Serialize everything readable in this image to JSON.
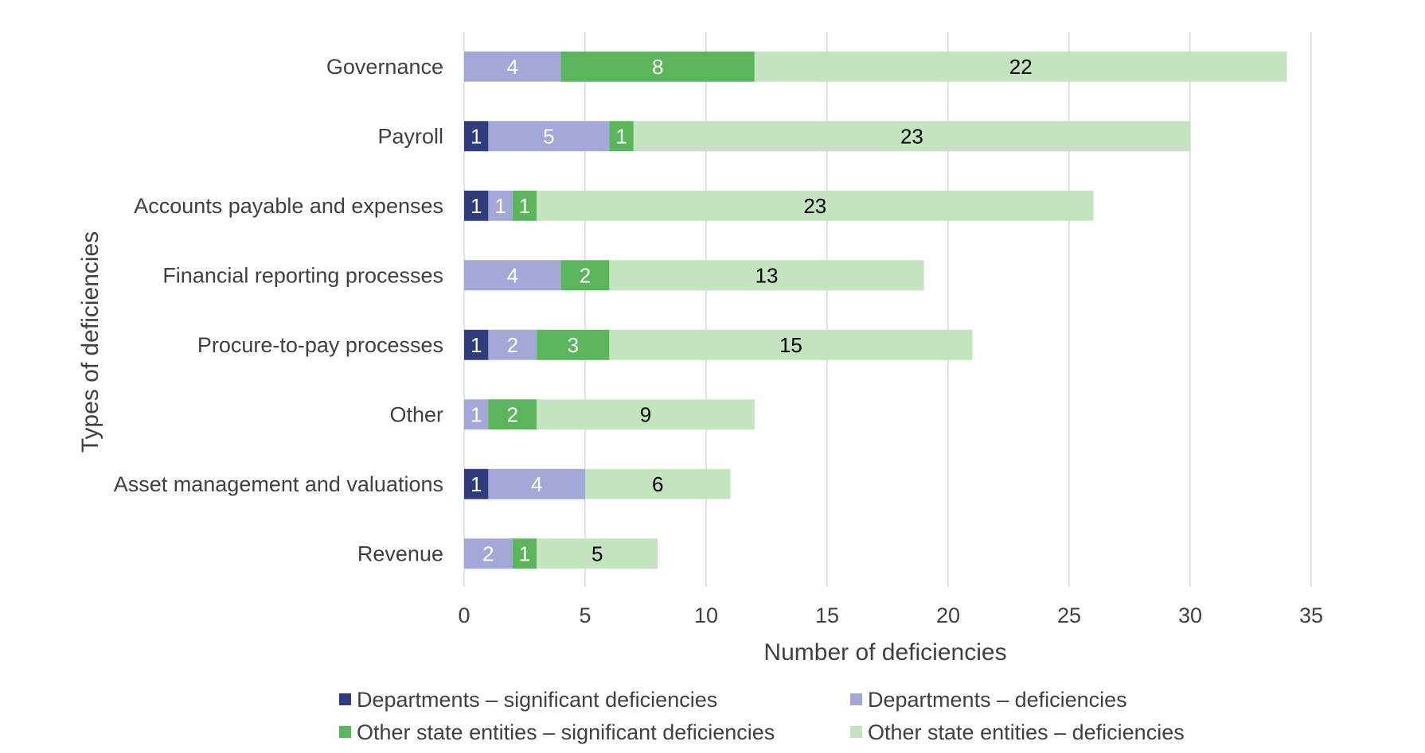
{
  "chart_data": {
    "type": "bar",
    "orientation": "horizontal",
    "stacked": true,
    "title": "",
    "xlabel": "Number of deficiencies",
    "ylabel": "Types of deficiencies",
    "xlim": [
      0,
      35
    ],
    "xticks": [
      0,
      5,
      10,
      15,
      20,
      25,
      30,
      35
    ],
    "grid": true,
    "legend_position": "bottom",
    "categories": [
      "Governance",
      "Payroll",
      "Accounts payable and expenses",
      "Financial reporting processes",
      "Procure-to-pay processes",
      "Other",
      "Asset management and valuations",
      "Revenue"
    ],
    "series": [
      {
        "name": "Departments – significant deficiencies",
        "color": "#2f3c7e",
        "label_color": "#ffffff",
        "values": [
          0,
          1,
          1,
          0,
          1,
          0,
          1,
          0
        ]
      },
      {
        "name": "Departments – deficiencies",
        "color": "#a2a8d8",
        "label_color": "#ffffff",
        "values": [
          4,
          5,
          1,
          4,
          2,
          1,
          4,
          2
        ]
      },
      {
        "name": "Other state entities – significant deficiencies",
        "color": "#5bb55a",
        "label_color": "#ffffff",
        "values": [
          8,
          1,
          1,
          2,
          3,
          2,
          0,
          1
        ]
      },
      {
        "name": "Other state entities – deficiencies",
        "color": "#c3e4be",
        "label_color": "#000000",
        "values": [
          22,
          23,
          23,
          13,
          15,
          9,
          6,
          5
        ]
      }
    ],
    "gridline_color": "#d9d9d9"
  }
}
